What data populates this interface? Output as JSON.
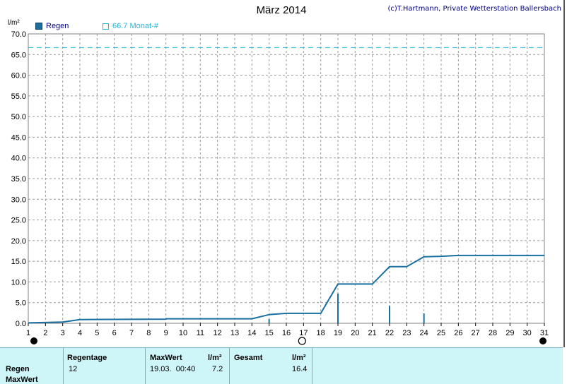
{
  "title": "März 2014",
  "copyright": "(c)T.Hartmann, Private Wetterstation Ballersbach",
  "unit": "l/m²",
  "legend": {
    "rain_label": "Regen",
    "month_label": "66.7 Monat-#"
  },
  "colors": {
    "rain": "#1a6fa0",
    "month_line": "#22b8d8",
    "grid": "#999999"
  },
  "chart_data": {
    "type": "line",
    "title": "März 2014",
    "ylabel": "l/m²",
    "xlabel": "",
    "xlim": [
      1,
      31
    ],
    "ylim": [
      0,
      70
    ],
    "x_ticks": [
      1,
      2,
      3,
      4,
      5,
      6,
      7,
      8,
      9,
      10,
      11,
      12,
      13,
      14,
      15,
      16,
      17,
      18,
      19,
      20,
      21,
      22,
      23,
      24,
      25,
      26,
      27,
      28,
      29,
      30,
      31
    ],
    "y_ticks": [
      "0.0",
      "5.0",
      "10.0",
      "15.0",
      "20.0",
      "25.0",
      "30.0",
      "35.0",
      "40.0",
      "45.0",
      "50.0",
      "55.0",
      "60.0",
      "65.0",
      "70.0"
    ],
    "grid": true,
    "reference_line": {
      "name": "66.7 Monat-#",
      "value": 66.7
    },
    "series": [
      {
        "name": "Regen",
        "kind": "cumulative",
        "points": [
          [
            1.0,
            0.1
          ],
          [
            3.0,
            0.3
          ],
          [
            4.0,
            0.9
          ],
          [
            9.0,
            1.0
          ],
          [
            9.05,
            1.1
          ],
          [
            14.0,
            1.1
          ],
          [
            15.0,
            2.1
          ],
          [
            16.0,
            2.4
          ],
          [
            18.0,
            2.4
          ],
          [
            19.0,
            9.5
          ],
          [
            21.0,
            9.5
          ],
          [
            22.0,
            13.7
          ],
          [
            23.0,
            13.7
          ],
          [
            24.0,
            16.1
          ],
          [
            25.0,
            16.2
          ],
          [
            26.0,
            16.4
          ],
          [
            31.0,
            16.4
          ]
        ]
      },
      {
        "name": "Regen",
        "kind": "daily",
        "bars": [
          {
            "x": 15,
            "value": 1.0
          },
          {
            "x": 19,
            "value": 7.2
          },
          {
            "x": 22,
            "value": 4.2
          },
          {
            "x": 24,
            "value": 2.4
          }
        ]
      }
    ],
    "markers": [
      {
        "x": 1,
        "symbol": "moon-new"
      },
      {
        "x": 17,
        "symbol": "moon-full"
      },
      {
        "x": 31,
        "symbol": "moon-new"
      }
    ]
  },
  "table": {
    "row_labels": [
      "Regen",
      "MaxWert"
    ],
    "headers": {
      "regentage": "Regentage",
      "maxwert": "MaxWert",
      "maxwert_unit": "l/m²",
      "gesamt": "Gesamt",
      "gesamt_unit": "l/m²"
    },
    "values": {
      "regentage": "12",
      "max_date_time": "19.03.  00:40",
      "max_value": "7.2",
      "gesamt": "16.4"
    }
  }
}
